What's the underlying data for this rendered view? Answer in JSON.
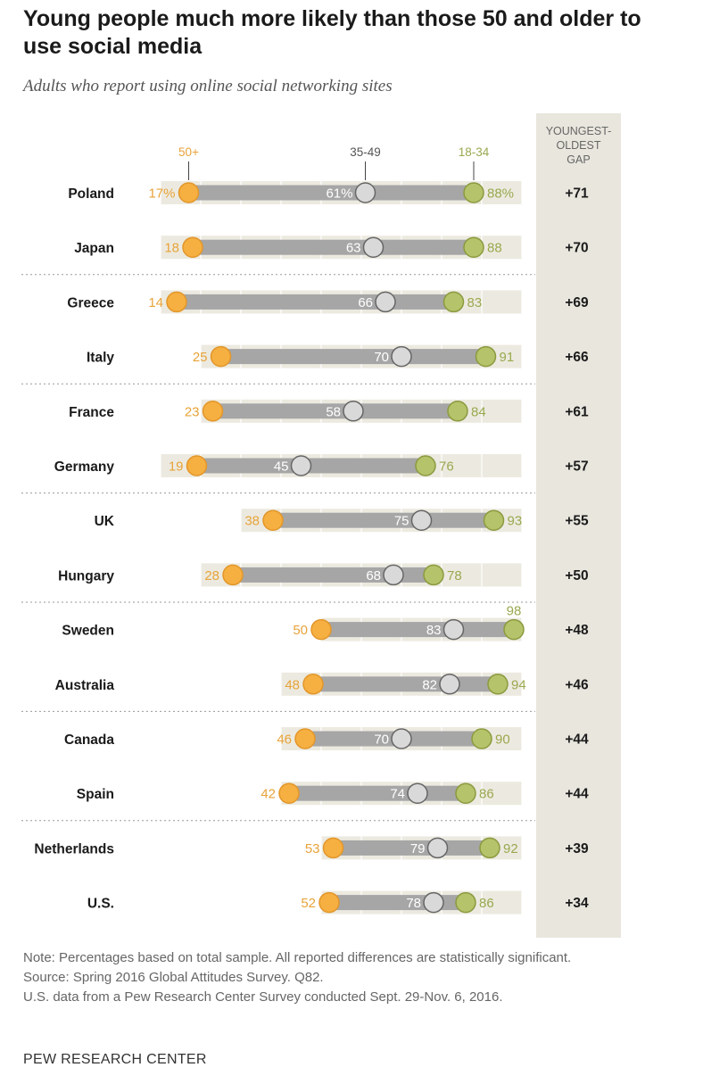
{
  "title": "Young people much more likely than those 50 and older to use social media",
  "subtitle": "Adults who report using online social networking sites",
  "gap_header": [
    "YOUNGEST-",
    "OLDEST",
    "GAP"
  ],
  "colors": {
    "age_50_plus": "#f5b041",
    "age_35_49": "#d9d9d9",
    "age_18_34": "#b5c36b",
    "bar": "#a6a6a6",
    "band": "#eceae0",
    "gap_column": "#e8e6dd"
  },
  "chart_data": {
    "type": "dot-range",
    "series_labels": [
      "50+",
      "35-49",
      "18-34"
    ],
    "countries": [
      {
        "name": "Poland",
        "v50": 17,
        "v35": 61,
        "v18": 88,
        "l50": "17%",
        "l35": "61%",
        "l18": "88%",
        "gap": "+71"
      },
      {
        "name": "Japan",
        "v50": 18,
        "v35": 63,
        "v18": 88,
        "l50": "18",
        "l35": "63",
        "l18": "88",
        "gap": "+70"
      },
      {
        "name": "Greece",
        "v50": 14,
        "v35": 66,
        "v18": 83,
        "l50": "14",
        "l35": "66",
        "l18": "83",
        "gap": "+69"
      },
      {
        "name": "Italy",
        "v50": 25,
        "v35": 70,
        "v18": 91,
        "l50": "25",
        "l35": "70",
        "l18": "91",
        "gap": "+66"
      },
      {
        "name": "France",
        "v50": 23,
        "v35": 58,
        "v18": 84,
        "l50": "23",
        "l35": "58",
        "l18": "84",
        "gap": "+61"
      },
      {
        "name": "Germany",
        "v50": 19,
        "v35": 45,
        "v18": 76,
        "l50": "19",
        "l35": "45",
        "l18": "76",
        "gap": "+57"
      },
      {
        "name": "UK",
        "v50": 38,
        "v35": 75,
        "v18": 93,
        "l50": "38",
        "l35": "75",
        "l18": "93",
        "gap": "+55"
      },
      {
        "name": "Hungary",
        "v50": 28,
        "v35": 68,
        "v18": 78,
        "l50": "28",
        "l35": "68",
        "l18": "78",
        "gap": "+50"
      },
      {
        "name": "Sweden",
        "v50": 50,
        "v35": 83,
        "v18": 98,
        "l50": "50",
        "l35": "83",
        "l18": "98",
        "gap": "+48"
      },
      {
        "name": "Australia",
        "v50": 48,
        "v35": 82,
        "v18": 94,
        "l50": "48",
        "l35": "82",
        "l18": "94",
        "gap": "+46"
      },
      {
        "name": "Canada",
        "v50": 46,
        "v35": 70,
        "v18": 90,
        "l50": "46",
        "l35": "70",
        "l18": "90",
        "gap": "+44"
      },
      {
        "name": "Spain",
        "v50": 42,
        "v35": 74,
        "v18": 86,
        "l50": "42",
        "l35": "74",
        "l18": "86",
        "gap": "+44"
      },
      {
        "name": "Netherlands",
        "v50": 53,
        "v35": 79,
        "v18": 92,
        "l50": "53",
        "l35": "79",
        "l18": "92",
        "gap": "+39"
      },
      {
        "name": "U.S.",
        "v50": 52,
        "v35": 78,
        "v18": 86,
        "l50": "52",
        "l35": "78",
        "l18": "86",
        "gap": "+34"
      }
    ]
  },
  "notes": [
    "Note: Percentages based on total sample. All reported differences are statistically significant.",
    "Source: Spring 2016 Global Attitudes Survey. Q82.",
    "U.S. data from a Pew Research Center Survey conducted Sept. 29-Nov. 6, 2016."
  ],
  "brand": "PEW RESEARCH CENTER"
}
